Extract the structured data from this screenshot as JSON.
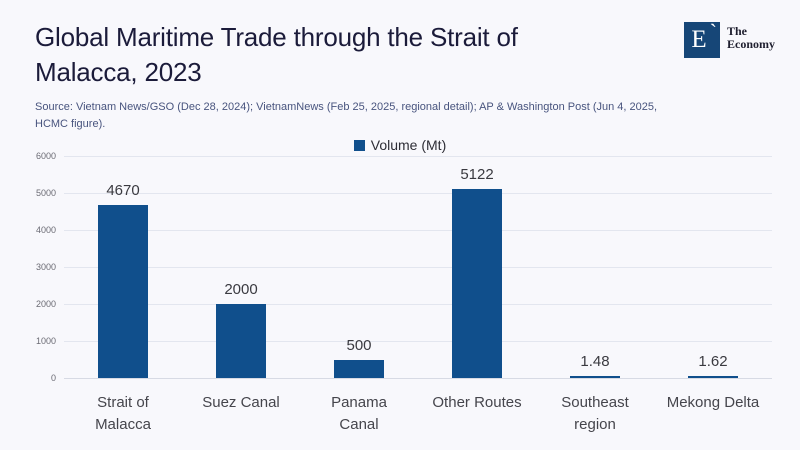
{
  "header": {
    "title": "Global Maritime Trade through the Strait of\nMalacca, 2023",
    "source": "Source: Vietnam News/GSO (Dec 28, 2024); VietnamNews (Feb 25, 2025, regional detail); AP & Washington Post (Jun 4, 2025,\nHCMC figure).",
    "logo": {
      "monogram": "E",
      "name": "The\nEconomy",
      "color": "#164677"
    }
  },
  "chart_data": {
    "type": "bar",
    "title": "Global Maritime Trade through the Strait of Malacca, 2023",
    "legend": {
      "label": "Volume (Mt)",
      "position": "top-center",
      "marker_color": "#104f8c"
    },
    "categories": [
      "Strait of\nMalacca",
      "Suez Canal",
      "Panama\nCanal",
      "Other Routes",
      "Southeast\nregion",
      "Mekong Delta"
    ],
    "values": [
      4670,
      2000,
      500,
      5122,
      1.48,
      1.62
    ],
    "value_labels": [
      "4670",
      "2000",
      "500",
      "5122",
      "1.48",
      "1.62"
    ],
    "xlabel": "",
    "ylabel": "",
    "ylim": [
      0,
      6000
    ],
    "yticks": [
      0,
      1000,
      2000,
      3000,
      4000,
      5000,
      6000
    ],
    "grid": true,
    "bar_color": "#104f8c",
    "background_color": "#f8f8fc"
  }
}
